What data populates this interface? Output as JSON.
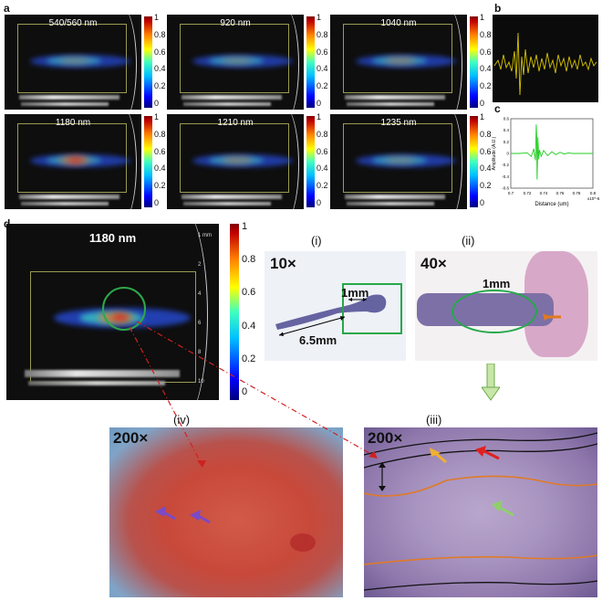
{
  "panel_labels": {
    "a": "a",
    "b": "b",
    "c": "c",
    "d": "d"
  },
  "us_panels": [
    {
      "wavelength": "540/560 nm"
    },
    {
      "wavelength": "920 nm"
    },
    {
      "wavelength": "1040 nm"
    },
    {
      "wavelength": "1180 nm"
    },
    {
      "wavelength": "1210 nm"
    },
    {
      "wavelength": "1235 nm"
    }
  ],
  "colorbar_ticks": [
    "1",
    "0.8",
    "0.6",
    "0.4",
    "0.2",
    "0"
  ],
  "scale_note": "1 mm",
  "depth_ticks": [
    "2",
    "4",
    "6",
    "8",
    "10"
  ],
  "panel_d": {
    "us_wavelength": "1180 nm",
    "sub_i": {
      "label": "(i)",
      "mag": "10×",
      "lengths": [
        "1mm",
        "6.5mm"
      ]
    },
    "sub_ii": {
      "label": "(ii)",
      "mag": "40×",
      "length": "1mm"
    },
    "sub_iii": {
      "label": "(iii)",
      "mag": "200×"
    },
    "sub_iv": {
      "label": "(iv)",
      "mag": "200×"
    }
  },
  "chart_data": [
    {
      "type": "line",
      "panel": "b",
      "series": [
        {
          "color": "#d6c400"
        }
      ]
    },
    {
      "type": "line",
      "panel": "c",
      "xlabel": "Distance (um)",
      "ylabel": "Amplitude (A.U.)",
      "x_multiplier": "x10^-6",
      "xlim": [
        0.7,
        0.8
      ],
      "ylim": [
        -0.6,
        0.6
      ],
      "xticks": [
        "0.7",
        "0.72",
        "0.74",
        "0.76",
        "0.78",
        "0.8"
      ],
      "yticks": [
        "0.6",
        "0.4",
        "0.2",
        "0",
        "-0.2",
        "-0.4",
        "-0.6"
      ],
      "x": [
        0.7,
        0.71,
        0.72,
        0.725,
        0.728,
        0.73,
        0.7305,
        0.731,
        0.7315,
        0.732,
        0.7325,
        0.733,
        0.7335,
        0.734,
        0.735,
        0.737,
        0.74,
        0.745,
        0.75,
        0.755,
        0.76,
        0.765,
        0.77,
        0.775,
        0.78,
        0.79,
        0.8
      ],
      "y": [
        0,
        0,
        0.01,
        -0.05,
        0.08,
        -0.12,
        0.2,
        0.5,
        0.3,
        -0.45,
        -0.15,
        0.28,
        0.1,
        -0.1,
        0.06,
        -0.05,
        0.05,
        -0.04,
        0.03,
        -0.02,
        0.02,
        -0.01,
        0.01,
        0,
        0,
        0,
        0
      ],
      "series": [
        {
          "color": "#22cc22"
        }
      ]
    }
  ]
}
